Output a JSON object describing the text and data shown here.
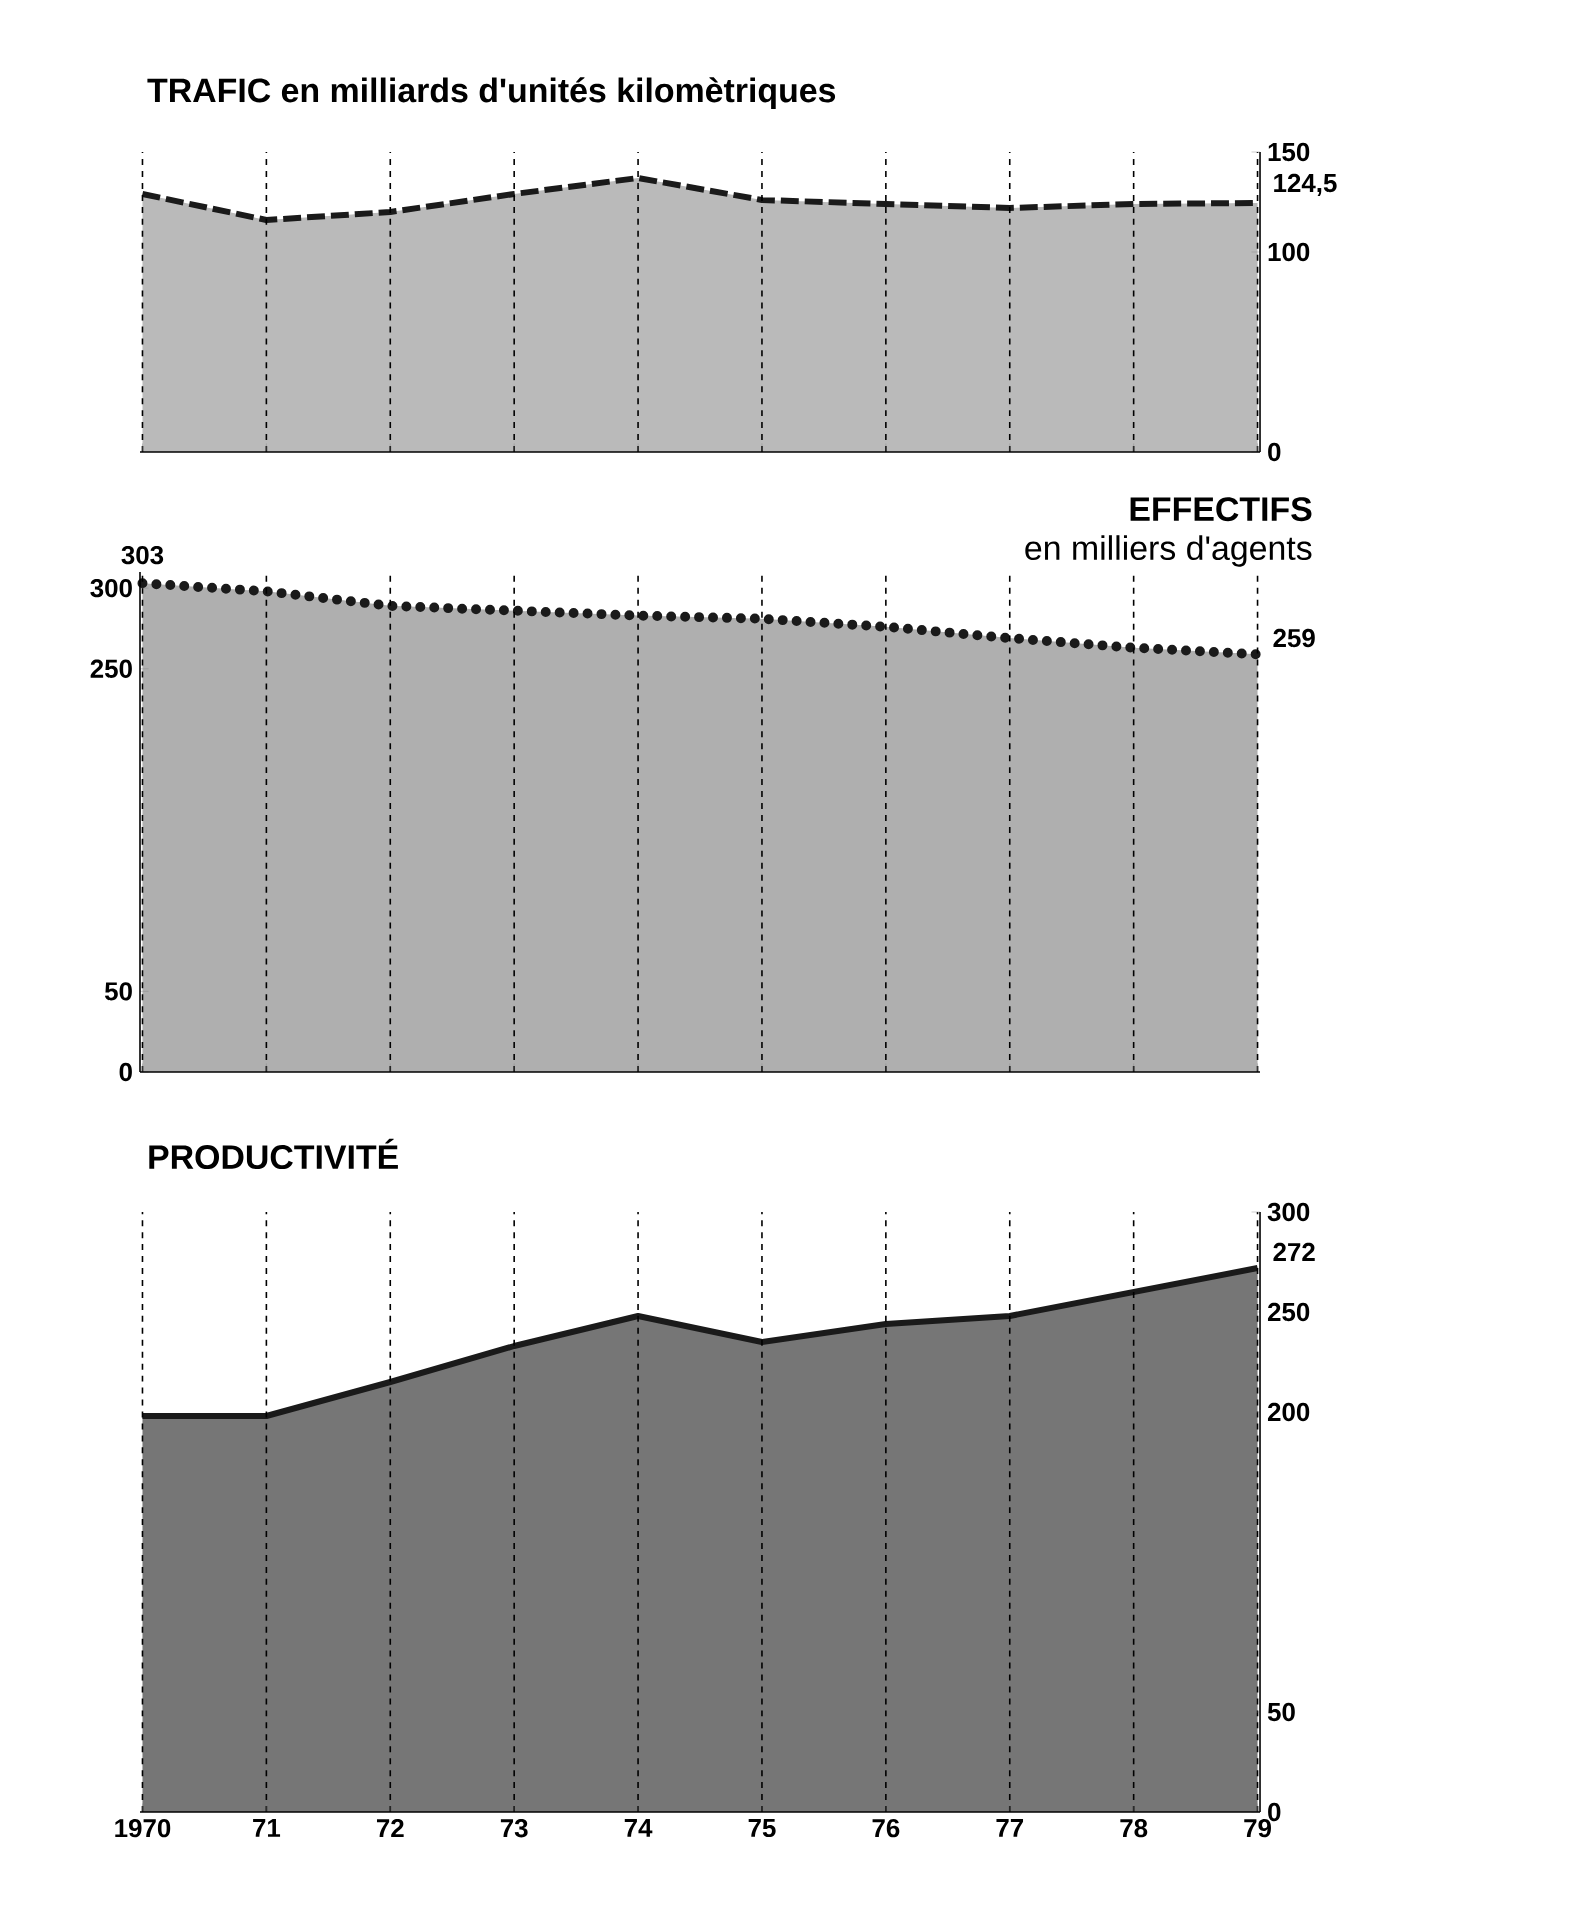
{
  "chart_data": [
    {
      "type": "area",
      "title": "**TRAFIC** en milliards d'unités kilomètriques",
      "categories": [
        "1970",
        "71",
        "72",
        "73",
        "74",
        "75",
        "76",
        "77",
        "78",
        "79"
      ],
      "tick_labels": "y",
      "ylim": [
        0,
        150
      ],
      "yticks": [
        0,
        100,
        150
      ],
      "grid": "x",
      "line_style": "dashed",
      "series": [
        {
          "color": "#1a1a1a",
          "values": [
            129,
            116,
            120,
            129,
            137,
            126,
            124,
            122,
            124,
            124.5
          ],
          "value_labels": [
            null,
            null,
            null,
            null,
            null,
            null,
            null,
            null,
            null,
            "124,5"
          ]
        }
      ]
    },
    {
      "type": "area",
      "title": "EFFECTIFS",
      "subtitle": "en milliers d'agents",
      "categories": [
        "1970",
        "71",
        "72",
        "73",
        "74",
        "75",
        "76",
        "77",
        "78",
        "79"
      ],
      "tick_labels": "y",
      "ylim": [
        0,
        310
      ],
      "yticks": [
        0,
        50,
        250,
        300
      ],
      "grid": "x",
      "line_style": "dotted",
      "series": [
        {
          "color": "#1a1a1a",
          "values": [
            303,
            298,
            289,
            286,
            283,
            281,
            276,
            269,
            263,
            259
          ],
          "value_labels": [
            "303",
            null,
            null,
            null,
            null,
            null,
            null,
            null,
            null,
            "259"
          ]
        }
      ]
    },
    {
      "type": "area",
      "title": "PRODUCTIVITÉ",
      "categories": [
        "1970",
        "71",
        "72",
        "73",
        "74",
        "75",
        "76",
        "77",
        "78",
        "79"
      ],
      "ylim": [
        0,
        300
      ],
      "yticks": [
        0,
        50,
        200,
        250,
        300
      ],
      "grid": "x",
      "line_style": "solid",
      "series": [
        {
          "color": "#1a1a1a",
          "values": [
            198,
            198,
            215,
            233,
            248,
            235,
            244,
            248,
            260,
            272
          ],
          "value_labels": [
            null,
            null,
            null,
            null,
            null,
            null,
            null,
            null,
            null,
            "272"
          ]
        }
      ]
    }
  ]
}
